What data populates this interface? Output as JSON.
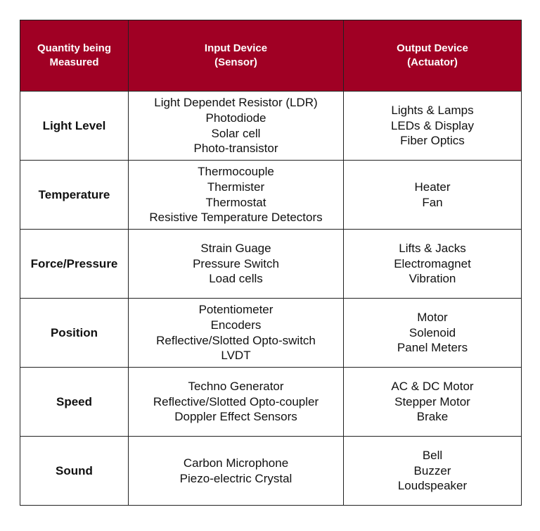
{
  "header_color": "#a00024",
  "headers": [
    [
      "Quantity being",
      "Measured"
    ],
    [
      "Input Device",
      "(Sensor)"
    ],
    [
      "Output Device",
      "(Actuator)"
    ]
  ],
  "rows": [
    {
      "quantity": "Light Level",
      "inputs": [
        "Light Dependet Resistor (LDR)",
        "Photodiode",
        "Solar cell",
        "Photo-transistor"
      ],
      "outputs": [
        "Lights & Lamps",
        "LEDs & Display",
        "Fiber Optics"
      ]
    },
    {
      "quantity": "Temperature",
      "inputs": [
        "Thermocouple",
        "Thermister",
        "Thermostat",
        "Resistive Temperature Detectors"
      ],
      "outputs": [
        "Heater",
        "Fan"
      ]
    },
    {
      "quantity": "Force/Pressure",
      "inputs": [
        "Strain Guage",
        "Pressure Switch",
        "Load cells"
      ],
      "outputs": [
        "Lifts & Jacks",
        "Electromagnet",
        "Vibration"
      ]
    },
    {
      "quantity": "Position",
      "inputs": [
        "Potentiometer",
        "Encoders",
        "Reflective/Slotted Opto-switch",
        "LVDT"
      ],
      "outputs": [
        "Motor",
        "Solenoid",
        "Panel Meters"
      ]
    },
    {
      "quantity": "Speed",
      "inputs": [
        "Techno Generator",
        "Reflective/Slotted Opto-coupler",
        "Doppler Effect Sensors"
      ],
      "outputs": [
        "AC & DC Motor",
        "Stepper Motor",
        "Brake"
      ]
    },
    {
      "quantity": "Sound",
      "inputs": [
        "Carbon Microphone",
        "Piezo-electric Crystal"
      ],
      "outputs": [
        "Bell",
        "Buzzer",
        "Loudspeaker"
      ]
    }
  ]
}
